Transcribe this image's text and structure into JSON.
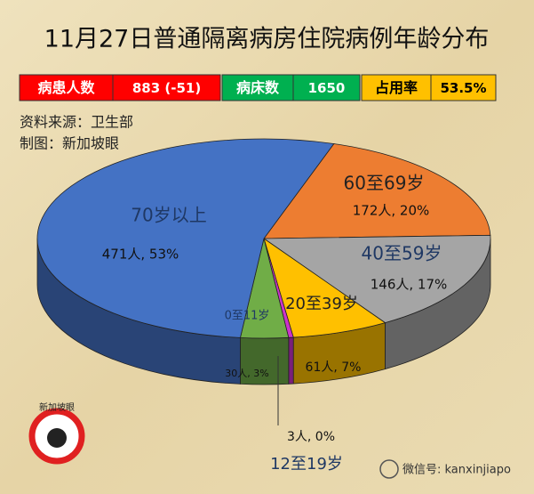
{
  "chart_data": {
    "type": "pie3d",
    "title": "11月27日普通隔离病房住院病例年龄分布",
    "stats": [
      {
        "label": "病患人数",
        "value": "883 (-51)",
        "color": "#ff0000",
        "text_color": "#ffffff"
      },
      {
        "label": "病床数",
        "value": "1650",
        "color": "#00b050",
        "text_color": "#ffffff"
      },
      {
        "label": "占用率",
        "value": "53.5%",
        "color": "#ffc000",
        "text_color": "#000000"
      }
    ],
    "source": "资料来源：卫生部",
    "credit": "制图：新加坡眼",
    "categories": [
      "60至69岁",
      "40至59岁",
      "20至39岁",
      "12至19岁",
      "0至11岁",
      "70岁以上"
    ],
    "values": [
      172,
      146,
      61,
      3,
      30,
      471
    ],
    "value_labels": [
      "172人, 20%",
      "146人, 17%",
      "61人, 7%",
      "3人, 0%",
      "30人, 3%",
      "471人, 53%"
    ],
    "colors": [
      "#ed7d31",
      "#a5a5a5",
      "#ffc000",
      "#cc33cc",
      "#70ad47",
      "#4472c4"
    ],
    "logo_text": "新加坡眼",
    "watermark": "微信号: kanxinjiapo"
  }
}
